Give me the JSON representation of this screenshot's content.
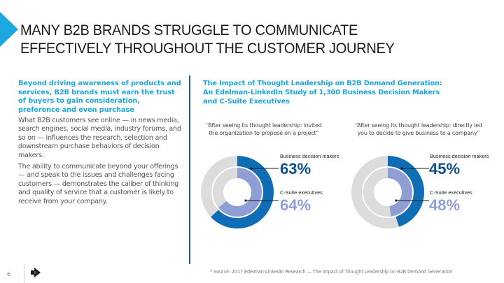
{
  "slide": {
    "title_line1": "MANY B2B BRANDS STRUGGLE TO COMMUNICATE",
    "title_line2": "EFFECTIVELY THROUGHOUT THE CUSTOMER JOURNEY",
    "accent_color": "#1da7e0",
    "page_number": "6"
  },
  "left_column": {
    "lead": "Beyond driving awareness of products and services, B2B brands must earn the trust of buyers to gain consideration, preference and even purchase",
    "paragraphs": [
      "What B2B customers see online — in news media, search engines, social media, industry forums, and so on — influences the research, selection and downstream purchase behaviors of decision makers.",
      "The ability to communicate beyond your offerings — and speak to the issues and challenges facing customers — demonstrates the caliber of thinking and quality of service that a customer is likely to receive from your company."
    ]
  },
  "study": {
    "title_line1": "The Impact of Thought Leadership on B2B Demand Generation:",
    "title_line2": "An Edelman-LinkedIn Study of 1,300 Business Decision Makers",
    "title_line3": "and C-Suite Executives"
  },
  "chart_data": [
    {
      "type": "pie",
      "title": "“After seeing its thought leadership: invited the organization to propose on a project”",
      "title_line1": "“After seeing its thought leadership: invited",
      "title_line2": "the organization to propose on a project”",
      "series": [
        {
          "name": "Business decision makers",
          "value": 63,
          "label": "63%",
          "color": "#0e6db5"
        },
        {
          "name": "C-Suite executives",
          "value": 64,
          "label": "64%",
          "color": "#8f9fd6"
        }
      ],
      "remainder_color": "#dcdcdc"
    },
    {
      "type": "pie",
      "title": "“After seeing its thought leadership: directly led you to decide to give business to a company”",
      "title_line1": "“After seeing its thought leadership: directly led",
      "title_line2": "you to decide to give business to a company”",
      "series": [
        {
          "name": "Business decision makers",
          "value": 45,
          "label": "45%",
          "color": "#0e6db5"
        },
        {
          "name": "C-Suite executives",
          "value": 48,
          "label": "48%",
          "color": "#8f9fd6"
        }
      ],
      "remainder_color": "#dcdcdc"
    }
  ],
  "footer": {
    "source": "* Source: 2017 Edelman-LinkedIn Research — The Impact of Thought Leadership on B2B Demand Generation",
    "logo_icon": "arrow-logo-icon"
  }
}
